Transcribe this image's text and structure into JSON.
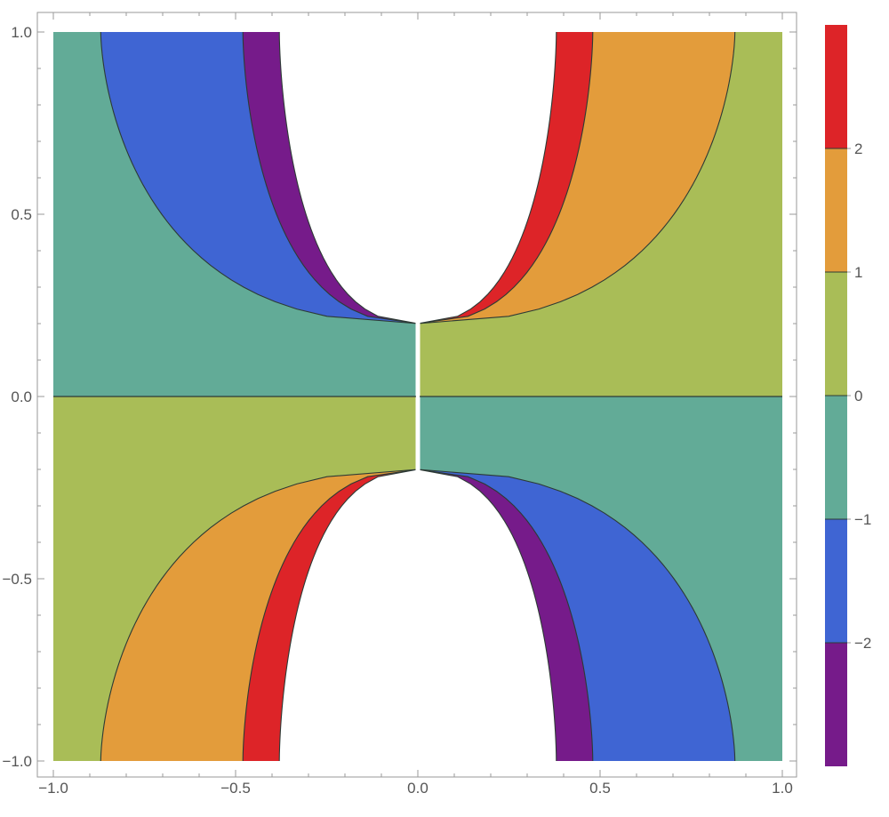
{
  "chart_data": {
    "type": "contour",
    "xlim": [
      -1.0,
      1.0
    ],
    "ylim": [
      -1.0,
      1.0
    ],
    "x_ticks": [
      {
        "value": -1.0,
        "label": "−1.0"
      },
      {
        "value": -0.5,
        "label": "−0.5"
      },
      {
        "value": 0.0,
        "label": "0.0"
      },
      {
        "value": 0.5,
        "label": "0.5"
      },
      {
        "value": 1.0,
        "label": "1.0"
      }
    ],
    "y_ticks": [
      {
        "value": -1.0,
        "label": "−1.0"
      },
      {
        "value": -0.5,
        "label": "−0.5"
      },
      {
        "value": 0.0,
        "label": "0.0"
      },
      {
        "value": 0.5,
        "label": "0.5"
      },
      {
        "value": 1.0,
        "label": "1.0"
      }
    ],
    "contour_levels": [
      -2,
      -1,
      0,
      1,
      2
    ],
    "legend": {
      "placement": "right",
      "range": [
        -3,
        3
      ],
      "ticks": [
        {
          "value": 2,
          "label": "2"
        },
        {
          "value": 1,
          "label": "1"
        },
        {
          "value": 0,
          "label": "0"
        },
        {
          "value": -1,
          "label": "−1"
        },
        {
          "value": -2,
          "label": "−2"
        }
      ]
    },
    "bands": [
      {
        "from": 2,
        "to": 3,
        "color": "#dd2428"
      },
      {
        "from": 1,
        "to": 2,
        "color": "#e39c3b"
      },
      {
        "from": 0,
        "to": 1,
        "color": "#a9bd57"
      },
      {
        "from": -1,
        "to": 0,
        "color": "#62ab97"
      },
      {
        "from": -2,
        "to": -1,
        "color": "#3f65d3"
      },
      {
        "from": -3,
        "to": -2,
        "color": "#761b8a"
      }
    ],
    "regions": [
      {
        "name": "upper-left",
        "x_range": [
          -1.0,
          0.0
        ],
        "y_range": [
          0.0,
          1.0
        ],
        "boundaries": [
          {
            "band": [
              -1,
              0
            ],
            "top_x": -0.87,
            "tip_y": 0.2
          },
          {
            "band": [
              -2,
              -1
            ],
            "top_x": -0.48,
            "tip_y": 0.2
          },
          {
            "band": [
              -3,
              -2
            ],
            "top_x": -0.38,
            "tip_y": 0.2
          }
        ]
      },
      {
        "name": "upper-right",
        "x_range": [
          0.0,
          1.0
        ],
        "y_range": [
          0.0,
          1.0
        ],
        "boundaries": [
          {
            "band": [
              0,
              1
            ],
            "top_x": 0.87,
            "tip_y": 0.2
          },
          {
            "band": [
              1,
              2
            ],
            "top_x": 0.48,
            "tip_y": 0.2
          },
          {
            "band": [
              2,
              3
            ],
            "top_x": 0.38,
            "tip_y": 0.2
          }
        ]
      },
      {
        "name": "lower-left",
        "x_range": [
          -1.0,
          0.0
        ],
        "y_range": [
          -1.0,
          0.0
        ],
        "boundaries": [
          {
            "band": [
              0,
              1
            ],
            "top_x": -0.87,
            "tip_y": -0.2
          },
          {
            "band": [
              1,
              2
            ],
            "top_x": -0.48,
            "tip_y": -0.2
          },
          {
            "band": [
              2,
              3
            ],
            "top_x": -0.38,
            "tip_y": -0.2
          }
        ]
      },
      {
        "name": "lower-right",
        "x_range": [
          0.0,
          1.0
        ],
        "y_range": [
          -1.0,
          0.0
        ],
        "boundaries": [
          {
            "band": [
              -1,
              0
            ],
            "top_x": 0.87,
            "tip_y": -0.2
          },
          {
            "band": [
              -2,
              -1
            ],
            "top_x": 0.48,
            "tip_y": -0.2
          },
          {
            "band": [
              -3,
              -2
            ],
            "top_x": 0.38,
            "tip_y": -0.2
          }
        ]
      }
    ],
    "grid": false
  }
}
